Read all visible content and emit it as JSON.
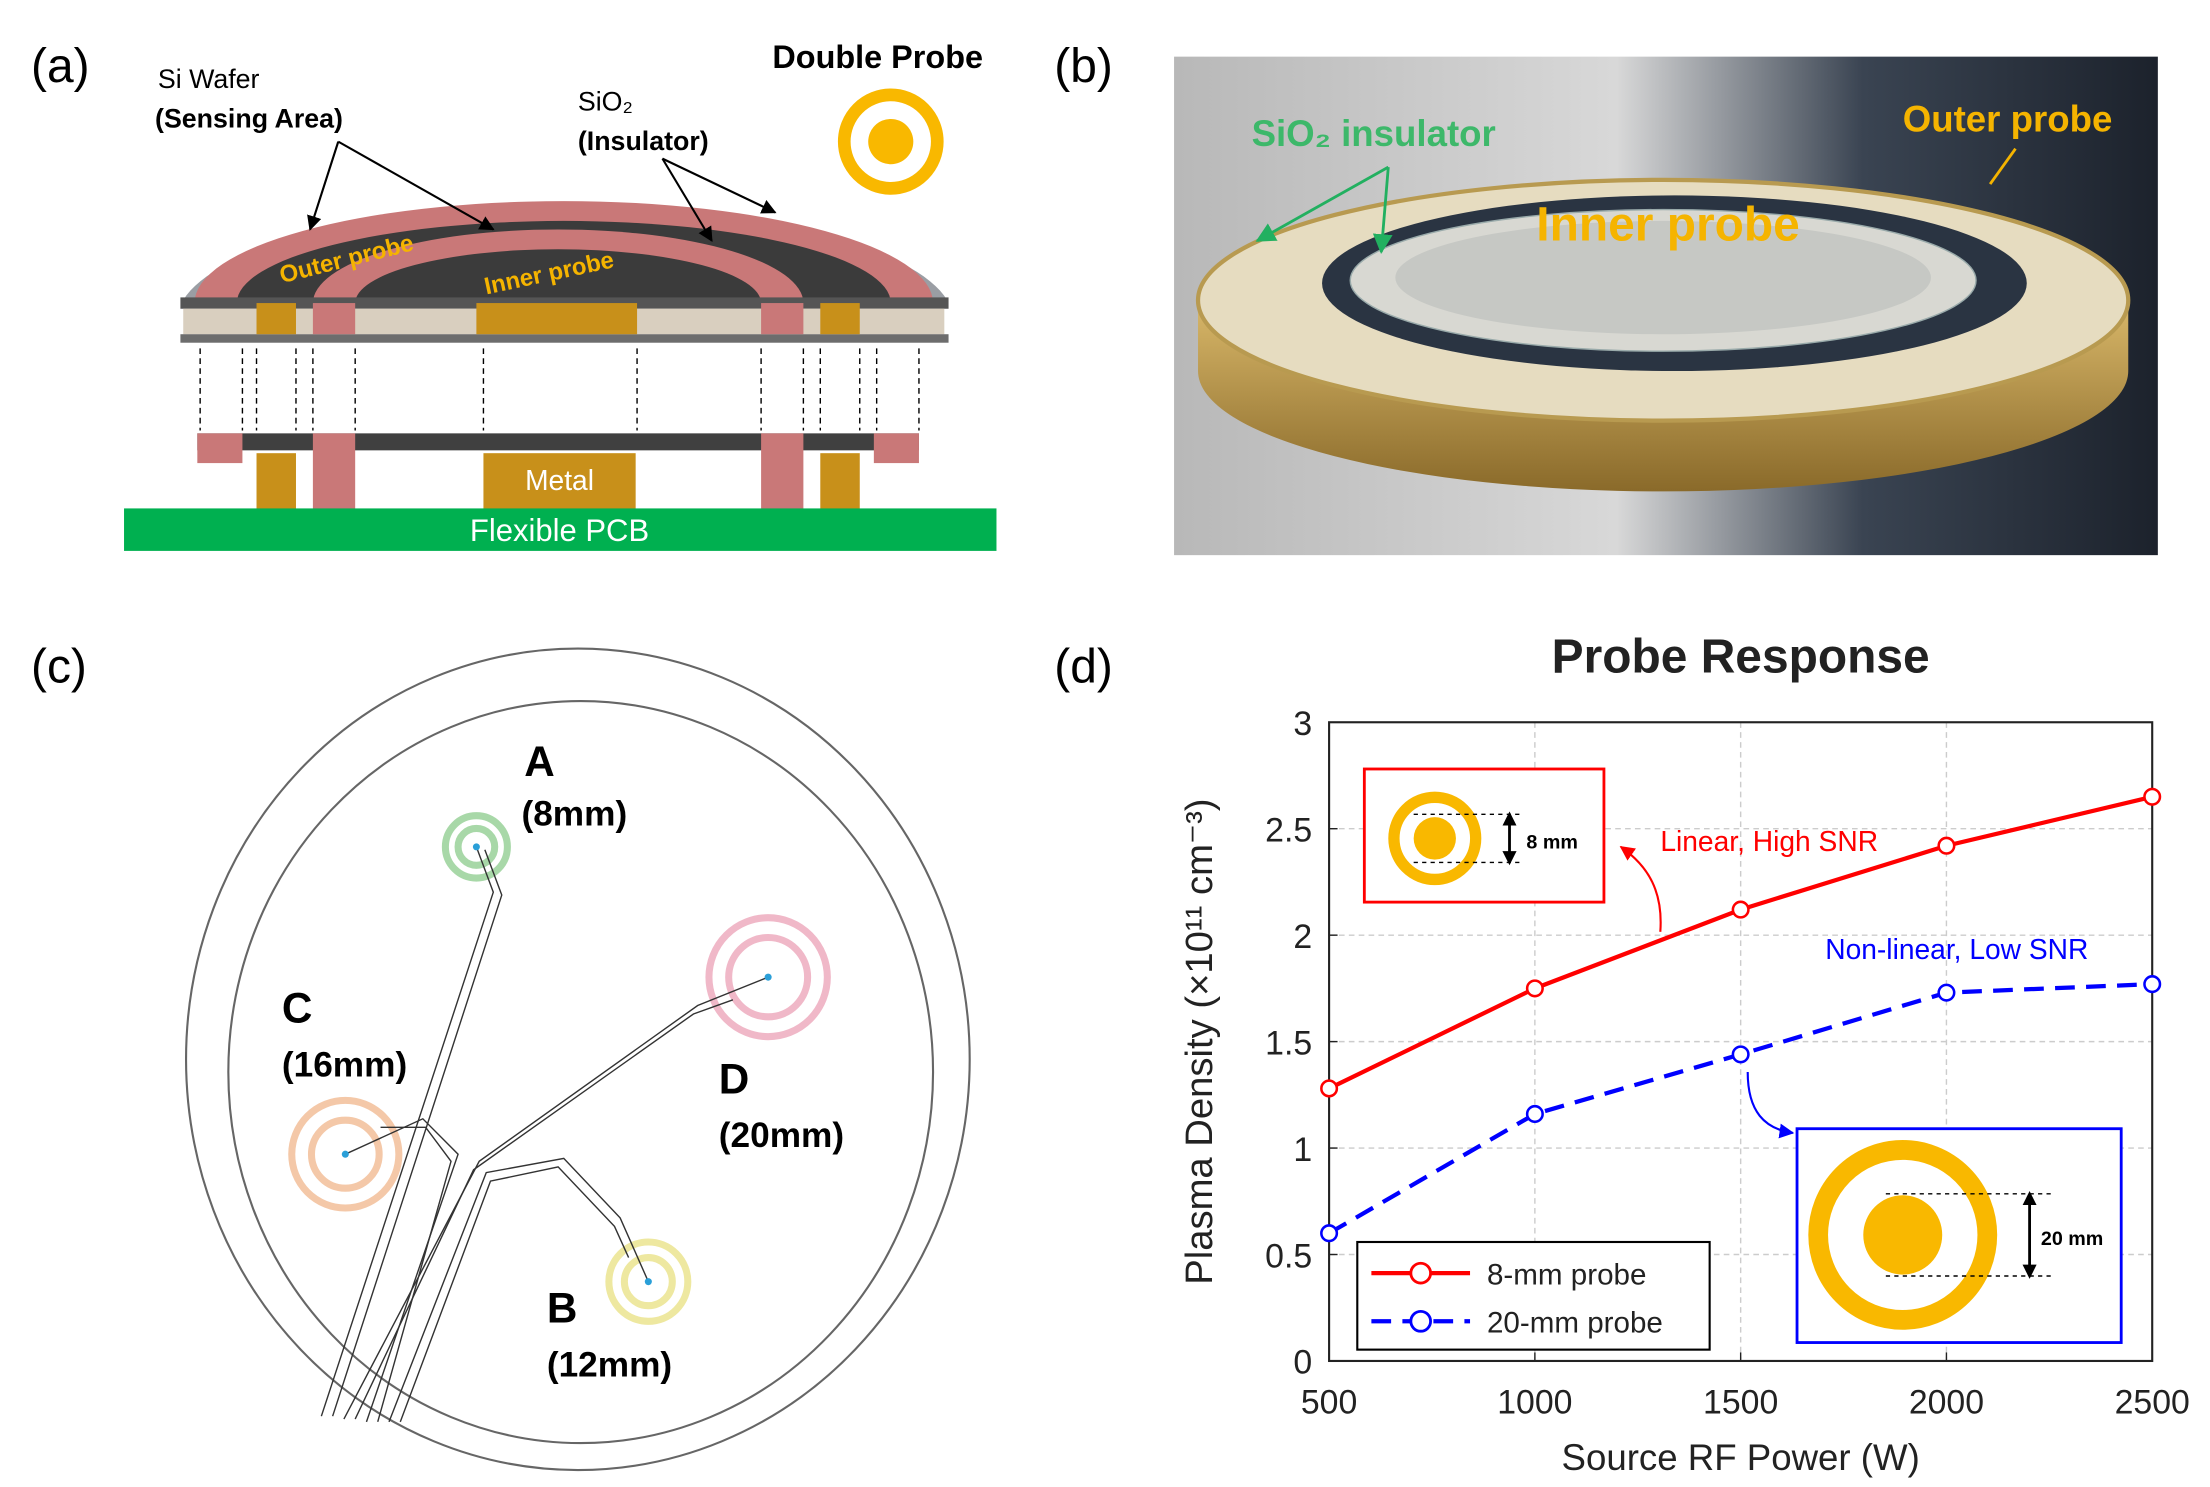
{
  "panels": {
    "a": {
      "label": "(a)",
      "si_wafer": "Si Wafer",
      "sensing_area": "(Sensing Area)",
      "sio2": "SiO₂",
      "insulator": "(Insulator)",
      "double_probe": "Double Probe",
      "outer_probe": "Outer probe",
      "inner_probe": "Inner probe",
      "metal": "Metal",
      "pcb": "Flexible PCB"
    },
    "b": {
      "label": "(b)",
      "insulator": "SiO₂ insulator",
      "outer_probe": "Outer probe",
      "inner_probe": "Inner probe"
    },
    "c": {
      "label": "(c)",
      "probes": [
        {
          "letter": "A",
          "size": "(8mm)"
        },
        {
          "letter": "B",
          "size": "(12mm)"
        },
        {
          "letter": "C",
          "size": "(16mm)"
        },
        {
          "letter": "D",
          "size": "(20mm)"
        }
      ]
    },
    "d": {
      "label": "(d)"
    }
  },
  "chart_data": {
    "type": "line",
    "title": "Probe Response",
    "xlabel": "Source RF Power (W)",
    "ylabel": "Plasma Density (×10¹¹ cm⁻³)",
    "x": [
      500,
      1000,
      1500,
      2000,
      2500
    ],
    "xlim": [
      500,
      2500
    ],
    "ylim": [
      0,
      3
    ],
    "xticks": [
      500,
      1000,
      1500,
      2000,
      2500
    ],
    "yticks": [
      0,
      0.5,
      1,
      1.5,
      2,
      2.5,
      3
    ],
    "grid": true,
    "legend": "lower left",
    "series": [
      {
        "name": "8-mm probe",
        "color": "#ff0000",
        "dash": "solid",
        "values": [
          1.28,
          1.75,
          2.12,
          2.42,
          2.65
        ]
      },
      {
        "name": "20-mm probe",
        "color": "#0000ff",
        "dash": "dashed",
        "values": [
          0.6,
          1.16,
          1.44,
          1.73,
          1.77
        ]
      }
    ],
    "annotations": [
      "Linear, High SNR",
      "Non-linear, Low SNR"
    ],
    "inset_labels": [
      "8 mm",
      "20 mm"
    ]
  }
}
